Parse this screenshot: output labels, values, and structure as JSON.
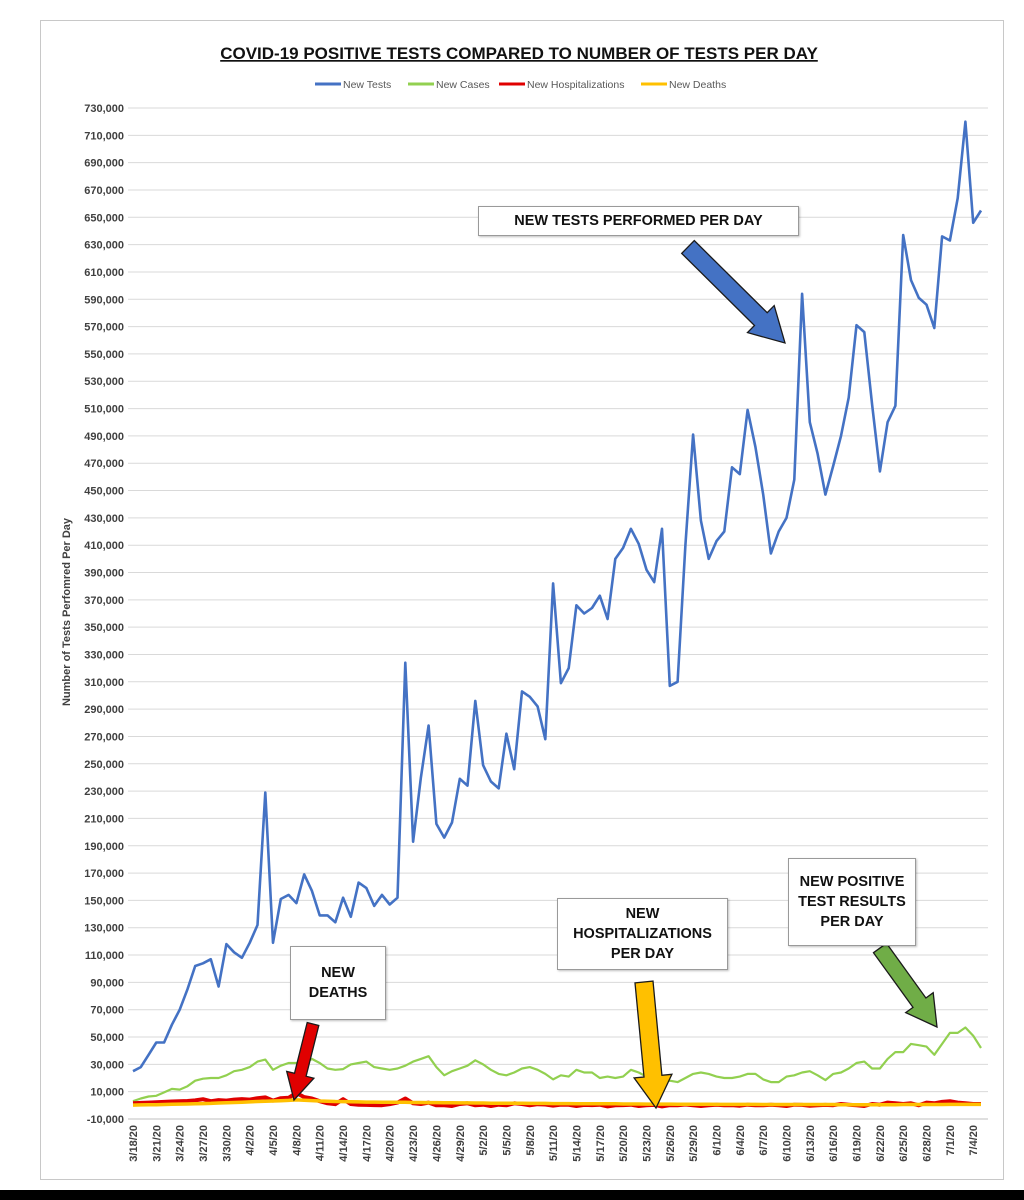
{
  "chart_data": {
    "type": "line",
    "title": "COVID-19 POSITIVE TESTS COMPARED TO NUMBER OF TESTS PER DAY",
    "ylabel": "Number of Tests Perfomred Per Day",
    "xlabel": "",
    "ylim": [
      -10000,
      730000
    ],
    "yticks": [
      -10000,
      10000,
      30000,
      50000,
      70000,
      90000,
      110000,
      130000,
      150000,
      170000,
      190000,
      210000,
      230000,
      250000,
      270000,
      290000,
      310000,
      330000,
      350000,
      370000,
      390000,
      410000,
      430000,
      450000,
      470000,
      490000,
      510000,
      530000,
      550000,
      570000,
      590000,
      610000,
      630000,
      650000,
      670000,
      690000,
      710000,
      730000
    ],
    "ytick_labels": [
      "-10,000",
      "10,000",
      "30,000",
      "50,000",
      "70,000",
      "90,000",
      "110,000",
      "130,000",
      "150,000",
      "170,000",
      "190,000",
      "210,000",
      "230,000",
      "250,000",
      "270,000",
      "290,000",
      "310,000",
      "330,000",
      "350,000",
      "370,000",
      "390,000",
      "410,000",
      "430,000",
      "450,000",
      "470,000",
      "490,000",
      "510,000",
      "530,000",
      "550,000",
      "570,000",
      "590,000",
      "610,000",
      "630,000",
      "650,000",
      "670,000",
      "690,000",
      "710,000",
      "730,000"
    ],
    "x_tick_labels": [
      "3/18/20",
      "3/21/20",
      "3/24/20",
      "3/27/20",
      "3/30/20",
      "4/2/20",
      "4/5/20",
      "4/8/20",
      "4/11/20",
      "4/14/20",
      "4/17/20",
      "4/20/20",
      "4/23/20",
      "4/26/20",
      "4/29/20",
      "5/2/20",
      "5/5/20",
      "5/8/20",
      "5/11/20",
      "5/14/20",
      "5/17/20",
      "5/20/20",
      "5/23/20",
      "5/26/20",
      "5/29/20",
      "6/1/20",
      "6/4/20",
      "6/7/20",
      "6/10/20",
      "6/13/20",
      "6/16/20",
      "6/19/20",
      "6/22/20",
      "6/25/20",
      "6/28/20",
      "7/1/20",
      "7/4/20"
    ],
    "x_tick_step": 3,
    "grid": true,
    "legend_position": "top-center",
    "series": [
      {
        "name": "New Tests",
        "color": "#4472C4",
        "values": [
          25000,
          28000,
          37000,
          46000,
          46000,
          59000,
          70000,
          85000,
          102000,
          104000,
          107000,
          87000,
          118000,
          112000,
          108000,
          119000,
          132000,
          229000,
          119000,
          151000,
          154000,
          148000,
          169000,
          157000,
          139000,
          139000,
          134000,
          152000,
          138000,
          163000,
          159000,
          146000,
          154000,
          147000,
          152000,
          324000,
          193000,
          240000,
          278000,
          206000,
          196000,
          207000,
          239000,
          234000,
          296000,
          249000,
          237000,
          232000,
          272000,
          246000,
          303000,
          299000,
          292000,
          268000,
          382000,
          309000,
          320000,
          366000,
          360000,
          364000,
          373000,
          356000,
          400000,
          408000,
          422000,
          411000,
          392000,
          383000,
          422000,
          307000,
          310000,
          410000,
          491000,
          428000,
          400000,
          413000,
          420000,
          467000,
          462000,
          509000,
          482000,
          447000,
          404000,
          420000,
          430000,
          458000,
          594000,
          500000,
          477000,
          447000,
          468000,
          490000,
          518000,
          571000,
          566000,
          513000,
          464000,
          500000,
          512000,
          637000,
          604000,
          591000,
          586000,
          569000,
          636000,
          633000,
          664000,
          720000,
          646000,
          655000
        ]
      },
      {
        "name": "New Cases",
        "color": "#92D050",
        "values": [
          3000,
          5000,
          6500,
          7000,
          9500,
          12000,
          11500,
          14000,
          18000,
          19500,
          20000,
          20000,
          22000,
          25000,
          26000,
          28000,
          32000,
          33500,
          26000,
          29000,
          31000,
          31000,
          30500,
          34000,
          31000,
          27000,
          26000,
          26500,
          30000,
          31000,
          32000,
          28000,
          27000,
          26000,
          27000,
          29000,
          32000,
          34000,
          36000,
          28000,
          22000,
          25000,
          27000,
          29000,
          33000,
          30000,
          26000,
          23000,
          22000,
          24000,
          27000,
          28000,
          26000,
          23000,
          19000,
          22000,
          21000,
          26000,
          24000,
          24000,
          20000,
          21000,
          20000,
          21000,
          26000,
          24000,
          21000,
          18000,
          17000,
          18000,
          17000,
          20000,
          23000,
          24000,
          23000,
          21000,
          20000,
          20000,
          21000,
          23000,
          23000,
          19000,
          17000,
          17000,
          21000,
          22000,
          24000,
          25000,
          22000,
          18500,
          23000,
          24000,
          27000,
          31000,
          32000,
          27000,
          27000,
          34000,
          39000,
          39000,
          45000,
          44000,
          43000,
          37000,
          45000,
          53000,
          53000,
          57000,
          51000,
          42000
        ]
      },
      {
        "name": "New Hospitalizations",
        "color": "#E00000",
        "values": [
          1500,
          1800,
          2000,
          2300,
          2500,
          2800,
          3000,
          3200,
          3600,
          4500,
          3000,
          3800,
          3500,
          4200,
          4600,
          4200,
          5200,
          5800,
          3500,
          5200,
          5500,
          9000,
          6000,
          5000,
          3000,
          1500,
          800,
          4500,
          1000,
          500,
          300,
          200,
          100,
          800,
          2000,
          5000,
          1500,
          1000,
          2000,
          0,
          0,
          -500,
          1000,
          1500,
          0,
          500,
          -500,
          500,
          0,
          1500,
          1000,
          0,
          800,
          600,
          -200,
          500,
          400,
          -500,
          300,
          200,
          500,
          -800,
          0,
          200,
          500,
          -500,
          0,
          300,
          -800,
          200,
          100,
          600,
          100,
          -500,
          0,
          500,
          0,
          200,
          -300,
          500,
          100,
          0,
          400,
          0,
          -500,
          500,
          300,
          -300,
          0,
          300,
          100,
          1000,
          500,
          0,
          -500,
          1000,
          500,
          2000,
          1500,
          1000,
          1500,
          0,
          2000,
          1500,
          2500,
          3000,
          2000,
          1500,
          1000,
          1000
        ]
      },
      {
        "name": "New Deaths",
        "color": "#FFC000",
        "values": [
          200,
          300,
          400,
          500,
          600,
          800,
          900,
          1000,
          1100,
          1300,
          1400,
          1700,
          1900,
          2100,
          2300,
          2500,
          2800,
          3000,
          3200,
          3400,
          3600,
          4000,
          3700,
          3500,
          3200,
          3000,
          2800,
          2700,
          2600,
          2500,
          2400,
          2400,
          2300,
          2300,
          2200,
          2200,
          2100,
          2100,
          2000,
          2000,
          1900,
          1900,
          1800,
          1800,
          1700,
          1700,
          1600,
          1600,
          1500,
          1500,
          1500,
          1400,
          1400,
          1400,
          1300,
          1300,
          1300,
          1200,
          1200,
          1200,
          1100,
          1100,
          1100,
          1000,
          1000,
          1000,
          900,
          900,
          900,
          900,
          800,
          800,
          800,
          800,
          800,
          700,
          700,
          700,
          700,
          700,
          700,
          600,
          600,
          600,
          600,
          600,
          600,
          600,
          600,
          600,
          600,
          500,
          500,
          500,
          500,
          500,
          500,
          500,
          500,
          600,
          600,
          600,
          600,
          600,
          600,
          700,
          700,
          700,
          700,
          700
        ]
      }
    ],
    "annotations": [
      {
        "id": "tests",
        "text": "NEW TESTS PERFORMED PER DAY",
        "arrow_color": "#4472C4",
        "target_date": "6/12/20"
      },
      {
        "id": "deaths",
        "text": "NEW\nDEATHS",
        "arrow_color": "#E00000",
        "target_date": "4/8/20"
      },
      {
        "id": "hosp",
        "text": "NEW\nHOSPITALIZATIONS\nPER DAY",
        "arrow_color": "#FFC000",
        "target_date": "5/23/20"
      },
      {
        "id": "cases",
        "text": "NEW POSITIVE\nTEST RESULTS\nPER DAY",
        "arrow_color": "#70AD47",
        "target_date": "7/1/20"
      }
    ]
  }
}
